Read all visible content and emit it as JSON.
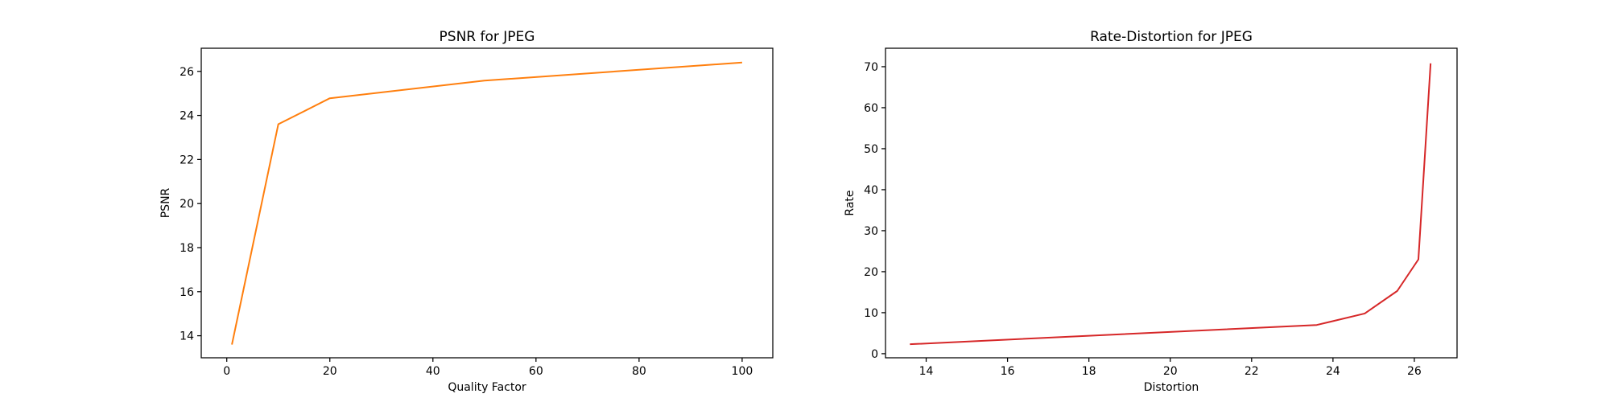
{
  "chart_data": [
    {
      "type": "line",
      "title": "PSNR for JPEG",
      "xlabel": "Quality Factor",
      "ylabel": "PSNR",
      "xlim": [
        -4.95,
        105.95
      ],
      "ylim": [
        13.0,
        27.05
      ],
      "xticks": [
        0,
        20,
        40,
        60,
        80,
        100
      ],
      "xtick_labels": [
        "0",
        "20",
        "40",
        "60",
        "80",
        "100"
      ],
      "yticks": [
        14,
        16,
        18,
        20,
        22,
        24,
        26
      ],
      "ytick_labels": [
        "14",
        "16",
        "18",
        "20",
        "22",
        "24",
        "26"
      ],
      "grid": false,
      "series": [
        {
          "name": "PSNR",
          "color": "#ff7f0e",
          "x": [
            1,
            10,
            20,
            50,
            100
          ],
          "y": [
            13.6,
            23.6,
            24.78,
            25.58,
            26.4
          ]
        }
      ]
    },
    {
      "type": "line",
      "title": "Rate-Distortion for JPEG",
      "xlabel": "Distortion",
      "ylabel": "Rate",
      "xlim": [
        13.0,
        27.05
      ],
      "ylim": [
        -1.0,
        74.5
      ],
      "xticks": [
        14,
        16,
        18,
        20,
        22,
        24,
        26
      ],
      "xtick_labels": [
        "14",
        "16",
        "18",
        "20",
        "22",
        "24",
        "26"
      ],
      "yticks": [
        0,
        10,
        20,
        30,
        40,
        50,
        60,
        70
      ],
      "ytick_labels": [
        "0",
        "10",
        "20",
        "30",
        "40",
        "50",
        "60",
        "70"
      ],
      "grid": false,
      "series": [
        {
          "name": "Rate",
          "color": "#d62728",
          "x": [
            13.6,
            23.6,
            24.78,
            25.58,
            26.1,
            26.4
          ],
          "y": [
            2.3,
            7.0,
            9.8,
            15.3,
            23.0,
            70.8
          ]
        }
      ]
    }
  ]
}
